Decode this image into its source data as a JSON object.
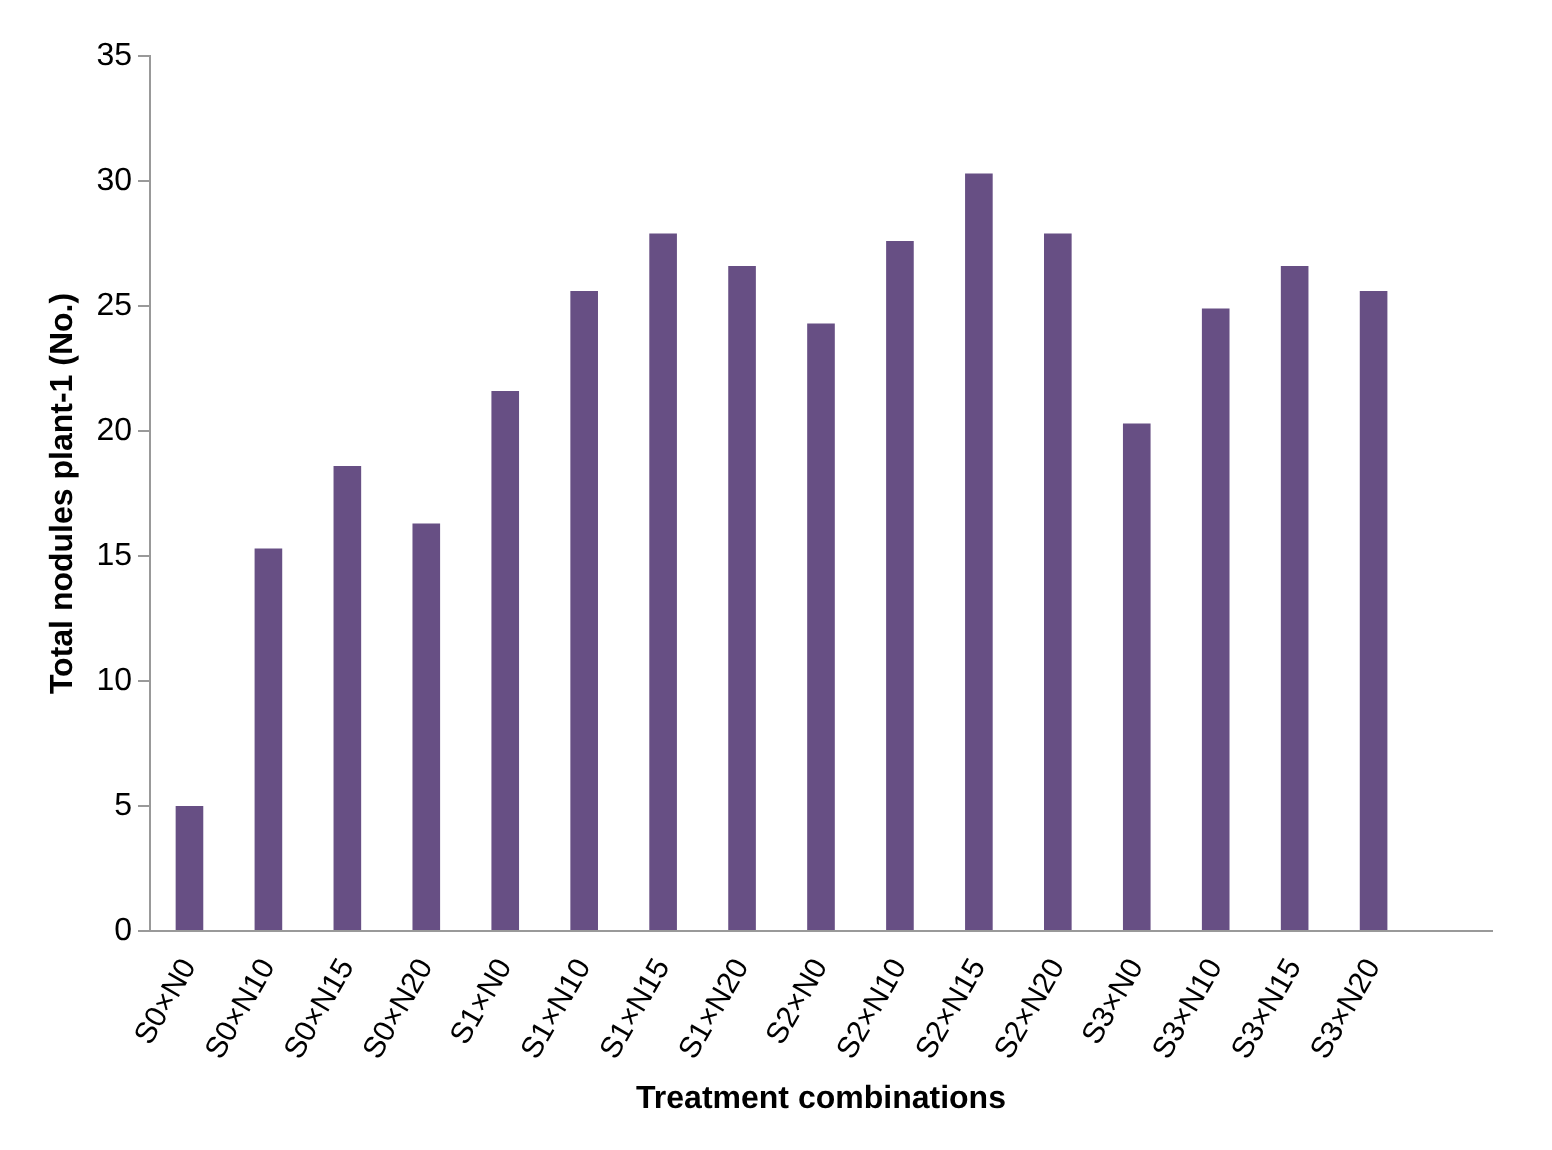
{
  "chart_data": {
    "type": "bar",
    "xlabel": "Treatment combinations",
    "ylabel": "Total nodules plant-1 (No.)",
    "categories": [
      "S0×N0",
      "S0×N10",
      "S0×N15",
      "S0×N20",
      "S1×N0",
      "S1×N10",
      "S1×N15",
      "S1×N20",
      "S2×N0",
      "S2×N10",
      "S2×N15",
      "S2×N20",
      "S3×N0",
      "S3×N10",
      "S3×N15",
      "S3×N20",
      null
    ],
    "values": [
      5.0,
      15.3,
      18.6,
      16.3,
      21.6,
      25.6,
      27.9,
      26.6,
      24.3,
      27.6,
      30.3,
      27.9,
      20.3,
      24.9,
      26.6,
      25.6,
      null
    ],
    "color": "#674f84",
    "ylim": [
      0,
      35
    ],
    "yticks": [
      0,
      5,
      10,
      15,
      20,
      25,
      30,
      35
    ],
    "grid": false,
    "legend": false
  }
}
